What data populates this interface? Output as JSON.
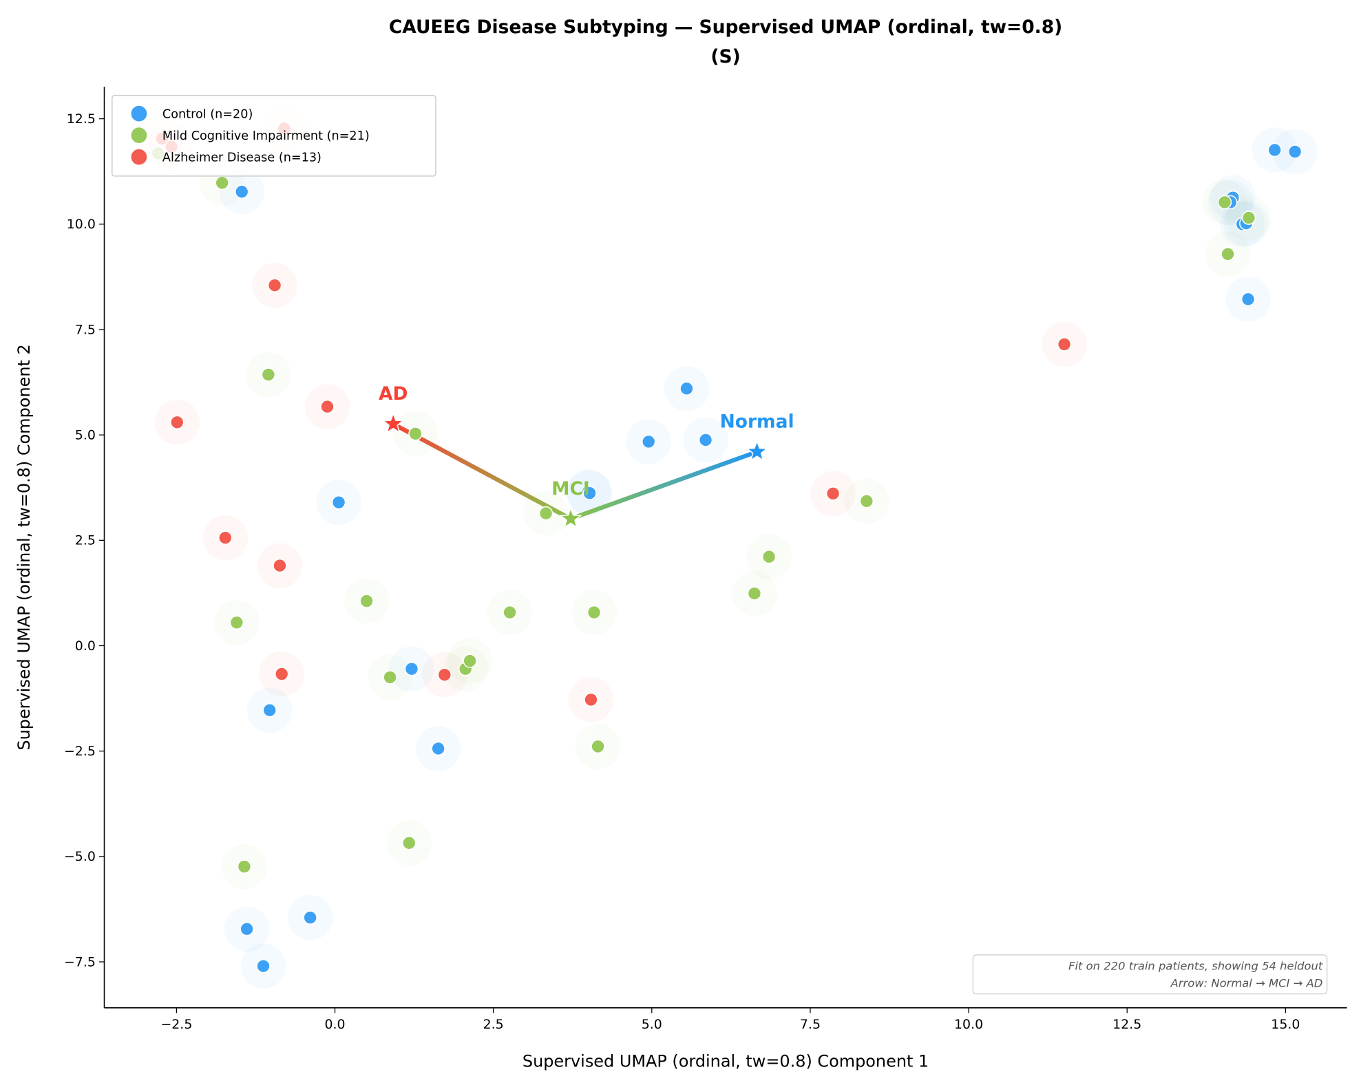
{
  "chart_data": {
    "type": "scatter",
    "title": "CAUEEG Disease Subtyping — Supervised UMAP (ordinal, tw=0.8)",
    "subtitle": "(S)",
    "xlabel": "Supervised UMAP (ordinal, tw=0.8) Component 1",
    "ylabel": "Supervised UMAP (ordinal, tw=0.8) Component 2",
    "xlim": [
      -3.64,
      15.97
    ],
    "ylim": [
      -8.59,
      13.26
    ],
    "grid": false,
    "legend_position": "top-left",
    "x_ticks": [
      "−2.5",
      "0.0",
      "2.5",
      "5.0",
      "7.5",
      "10.0",
      "12.5",
      "15.0"
    ],
    "x_tick_values": [
      -2.5,
      0,
      2.5,
      5,
      7.5,
      10,
      12.5,
      15
    ],
    "y_ticks": [
      "−7.5",
      "−5.0",
      "−2.5",
      "0.0",
      "2.5",
      "5.0",
      "7.5",
      "10.0",
      "12.5"
    ],
    "y_tick_values": [
      -7.5,
      -5,
      -2.5,
      0,
      2.5,
      5,
      7.5,
      10,
      12.5
    ],
    "series": [
      {
        "name": "Control (n=20)",
        "color": "#3ca1f4",
        "points": [
          [
            -1.47,
            10.77
          ],
          [
            14.83,
            11.76
          ],
          [
            15.15,
            11.72
          ],
          [
            14.17,
            10.63
          ],
          [
            14.13,
            10.52
          ],
          [
            14.32,
            10.0
          ],
          [
            14.38,
            10.02
          ],
          [
            14.41,
            8.22
          ],
          [
            5.55,
            6.1
          ],
          [
            4.95,
            4.84
          ],
          [
            5.85,
            4.88
          ],
          [
            0.06,
            3.4
          ],
          [
            4.0,
            3.65
          ],
          [
            1.21,
            -0.55
          ],
          [
            -1.03,
            -1.53
          ],
          [
            1.63,
            -2.44
          ],
          [
            -0.39,
            -6.45
          ],
          [
            -1.39,
            -6.72
          ],
          [
            -1.13,
            -7.6
          ],
          [
            4.02,
            3.62
          ]
        ]
      },
      {
        "name": "Mild Cognitive Impairment (n=21)",
        "color": "#98c95b",
        "points": [
          [
            -1.78,
            10.98
          ],
          [
            14.04,
            10.52
          ],
          [
            14.42,
            10.15
          ],
          [
            14.09,
            9.29
          ],
          [
            -1.05,
            6.43
          ],
          [
            1.27,
            5.03
          ],
          [
            3.33,
            3.14
          ],
          [
            8.39,
            3.43
          ],
          [
            6.85,
            2.11
          ],
          [
            6.62,
            1.24
          ],
          [
            0.5,
            1.06
          ],
          [
            -1.55,
            0.55
          ],
          [
            2.76,
            0.79
          ],
          [
            4.09,
            0.79
          ],
          [
            0.87,
            -0.75
          ],
          [
            2.06,
            -0.55
          ],
          [
            2.13,
            -0.36
          ],
          [
            4.15,
            -2.39
          ],
          [
            1.17,
            -4.68
          ],
          [
            -1.43,
            -5.24
          ],
          [
            -2.79,
            11.68
          ]
        ]
      },
      {
        "name": "Alzheimer Disease (n=13)",
        "color": "#f25b50",
        "points": [
          [
            -0.95,
            8.55
          ],
          [
            11.51,
            7.15
          ],
          [
            -0.12,
            5.67
          ],
          [
            -2.49,
            5.3
          ],
          [
            7.86,
            3.61
          ],
          [
            -1.73,
            2.56
          ],
          [
            -0.87,
            1.9
          ],
          [
            -0.84,
            -0.67
          ],
          [
            1.73,
            -0.69
          ],
          [
            4.04,
            -1.28
          ],
          [
            -2.73,
            12.03
          ],
          [
            -0.8,
            12.27
          ],
          [
            -2.58,
            11.84
          ]
        ]
      }
    ],
    "centroids": [
      {
        "label": "Normal",
        "x": 6.66,
        "y": 4.6,
        "color": "#2196f3"
      },
      {
        "label": "MCI",
        "x": 3.72,
        "y": 3.01,
        "color": "#8bc34a"
      },
      {
        "label": "AD",
        "x": 0.92,
        "y": 5.26,
        "color": "#f44336"
      }
    ],
    "annotation": [
      "Fit on 220 train patients, showing 54 heldout",
      "Arrow: Normal → MCI → AD"
    ]
  }
}
